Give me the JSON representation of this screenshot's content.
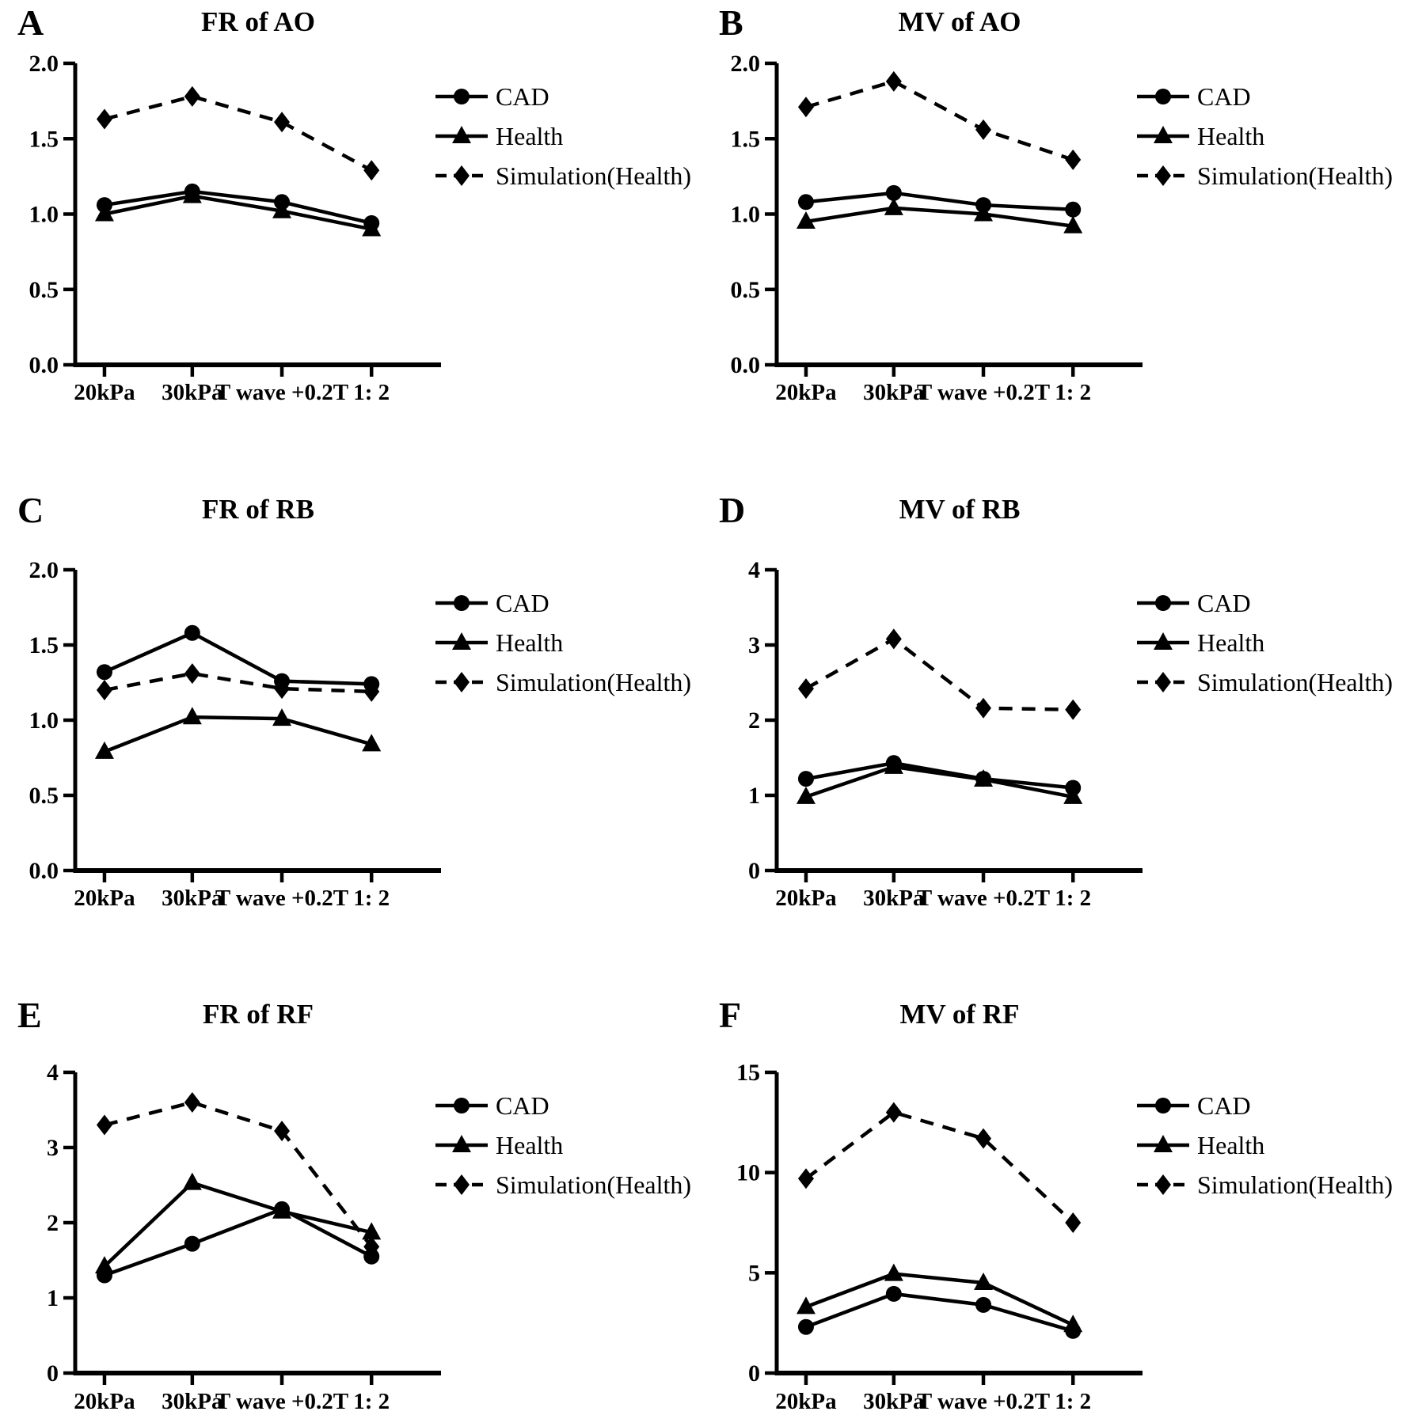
{
  "figure": {
    "background": "#ffffff",
    "ink_color": "#000000",
    "description": "Six-panel line figure comparing CAD, Health and Simulation(Health) across four conditions"
  },
  "chart_data": [
    {
      "type": "line",
      "letter": "A",
      "title": "FR of AO",
      "categories": [
        "20kPa",
        "30kPa",
        "T wave +0.2T",
        "1: 2"
      ],
      "ylim": [
        0,
        2
      ],
      "ytick_values": [
        0,
        0.5,
        1,
        1.5,
        2
      ],
      "ytick_labels": [
        "0.0",
        "0.5",
        "1.0",
        "1.5",
        "2.0"
      ],
      "grid": false,
      "legend_position": "upper-right",
      "series": [
        {
          "name": "CAD",
          "marker": "circle",
          "line_style": "solid",
          "values": [
            1.06,
            1.15,
            1.08,
            0.94
          ]
        },
        {
          "name": "Health",
          "marker": "triangle",
          "line_style": "solid",
          "values": [
            1.0,
            1.12,
            1.02,
            0.9
          ]
        },
        {
          "name": "Simulation(Health)",
          "marker": "diamond",
          "line_style": "dashed",
          "values": [
            1.63,
            1.78,
            1.61,
            1.29
          ]
        }
      ]
    },
    {
      "type": "line",
      "letter": "B",
      "title": "MV of AO",
      "categories": [
        "20kPa",
        "30kPa",
        "T wave +0.2T",
        "1: 2"
      ],
      "ylim": [
        0,
        2
      ],
      "ytick_values": [
        0,
        0.5,
        1,
        1.5,
        2
      ],
      "ytick_labels": [
        "0.0",
        "0.5",
        "1.0",
        "1.5",
        "2.0"
      ],
      "grid": false,
      "legend_position": "upper-right",
      "series": [
        {
          "name": "CAD",
          "marker": "circle",
          "line_style": "solid",
          "values": [
            1.08,
            1.14,
            1.06,
            1.03
          ]
        },
        {
          "name": "Health",
          "marker": "triangle",
          "line_style": "solid",
          "values": [
            0.95,
            1.04,
            1.0,
            0.92
          ]
        },
        {
          "name": "Simulation(Health)",
          "marker": "diamond",
          "line_style": "dashed",
          "values": [
            1.71,
            1.88,
            1.56,
            1.36
          ]
        }
      ]
    },
    {
      "type": "line",
      "letter": "C",
      "title": "FR of RB",
      "categories": [
        "20kPa",
        "30kPa",
        "T wave +0.2T",
        "1: 2"
      ],
      "ylim": [
        0,
        2
      ],
      "ytick_values": [
        0,
        0.5,
        1,
        1.5,
        2
      ],
      "ytick_labels": [
        "0.0",
        "0.5",
        "1.0",
        "1.5",
        "2.0"
      ],
      "grid": false,
      "legend_position": "upper-right",
      "series": [
        {
          "name": "CAD",
          "marker": "circle",
          "line_style": "solid",
          "values": [
            1.32,
            1.58,
            1.26,
            1.24
          ]
        },
        {
          "name": "Health",
          "marker": "triangle",
          "line_style": "solid",
          "values": [
            0.79,
            1.02,
            1.01,
            0.84
          ]
        },
        {
          "name": "Simulation(Health)",
          "marker": "diamond",
          "line_style": "dashed",
          "values": [
            1.2,
            1.31,
            1.21,
            1.19
          ]
        }
      ]
    },
    {
      "type": "line",
      "letter": "D",
      "title": "MV of RB",
      "categories": [
        "20kPa",
        "30kPa",
        "T wave +0.2T",
        "1: 2"
      ],
      "ylim": [
        0,
        4
      ],
      "ytick_values": [
        0,
        1,
        2,
        3,
        4
      ],
      "ytick_labels": [
        "0",
        "1",
        "2",
        "3",
        "4"
      ],
      "grid": false,
      "legend_position": "upper-right",
      "series": [
        {
          "name": "CAD",
          "marker": "circle",
          "line_style": "solid",
          "values": [
            1.22,
            1.43,
            1.22,
            1.1
          ]
        },
        {
          "name": "Health",
          "marker": "triangle",
          "line_style": "solid",
          "values": [
            0.98,
            1.38,
            1.21,
            0.98
          ]
        },
        {
          "name": "Simulation(Health)",
          "marker": "diamond",
          "line_style": "dashed",
          "values": [
            2.42,
            3.08,
            2.16,
            2.14
          ]
        }
      ]
    },
    {
      "type": "line",
      "letter": "E",
      "title": "FR of RF",
      "categories": [
        "20kPa",
        "30kPa",
        "T wave +0.2T",
        "1: 2"
      ],
      "ylim": [
        0,
        4
      ],
      "ytick_values": [
        0,
        1,
        2,
        3,
        4
      ],
      "ytick_labels": [
        "0",
        "1",
        "2",
        "3",
        "4"
      ],
      "grid": false,
      "legend_position": "upper-right",
      "series": [
        {
          "name": "CAD",
          "marker": "circle",
          "line_style": "solid",
          "values": [
            1.3,
            1.72,
            2.18,
            1.55
          ]
        },
        {
          "name": "Health",
          "marker": "triangle",
          "line_style": "solid",
          "values": [
            1.42,
            2.53,
            2.15,
            1.87
          ]
        },
        {
          "name": "Simulation(Health)",
          "marker": "diamond",
          "line_style": "dashed",
          "values": [
            3.3,
            3.6,
            3.22,
            1.68
          ]
        }
      ]
    },
    {
      "type": "line",
      "letter": "F",
      "title": "MV of RF",
      "categories": [
        "20kPa",
        "30kPa",
        "T wave +0.2T",
        "1: 2"
      ],
      "ylim": [
        0,
        15
      ],
      "ytick_values": [
        0,
        5,
        10,
        15
      ],
      "ytick_labels": [
        "0",
        "5",
        "10",
        "15"
      ],
      "grid": false,
      "legend_position": "upper-right",
      "series": [
        {
          "name": "CAD",
          "marker": "circle",
          "line_style": "solid",
          "values": [
            2.3,
            3.95,
            3.4,
            2.1
          ]
        },
        {
          "name": "Health",
          "marker": "triangle",
          "line_style": "solid",
          "values": [
            3.3,
            4.95,
            4.5,
            2.4
          ]
        },
        {
          "name": "Simulation(Health)",
          "marker": "diamond",
          "line_style": "dashed",
          "values": [
            9.7,
            13.0,
            11.7,
            7.5
          ]
        }
      ]
    }
  ]
}
